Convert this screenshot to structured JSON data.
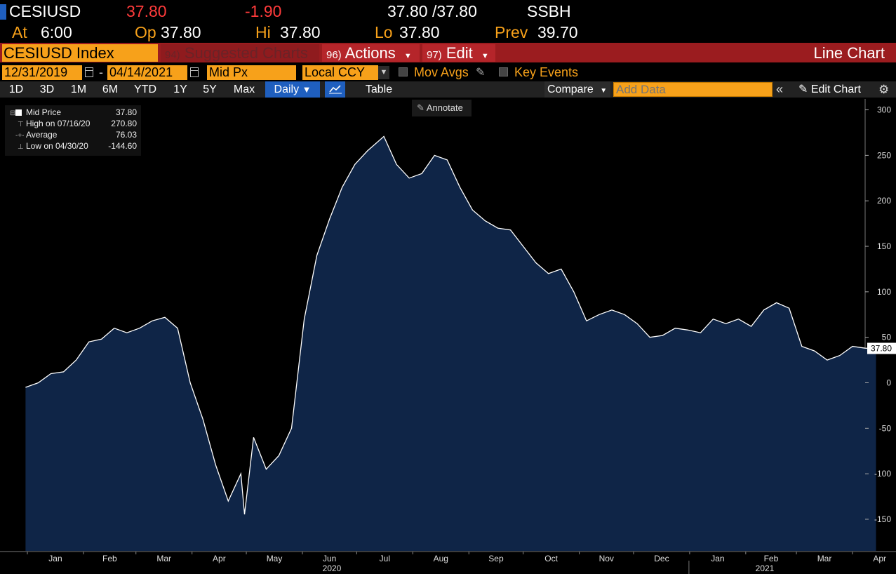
{
  "header": {
    "ticker": "CESIUSD",
    "last_price": "37.80",
    "net_change": "-1.90",
    "bid_ask": "37.80 /37.80",
    "source": "SSBH",
    "at_label": "At",
    "at_time": "6:00",
    "open_label": "Op",
    "open": "37.80",
    "high_label": "Hi",
    "high": "37.80",
    "low_label": "Lo",
    "low": "37.80",
    "prev_label": "Prev",
    "prev": "39.70"
  },
  "toolbar": {
    "security": "CESIUSD Index",
    "suggested_num": "94)",
    "suggested": "Suggested Charts",
    "actions_num": "96)",
    "actions": "Actions",
    "edit_num": "97)",
    "edit": "Edit",
    "chart_type": "Line Chart"
  },
  "settings": {
    "start_date": "12/31/2019",
    "date_sep": "-",
    "end_date": "04/14/2021",
    "field": "Mid Px",
    "currency": "Local CCY",
    "mov_avgs": "Mov Avgs",
    "key_events": "Key Events"
  },
  "ranges": {
    "buttons": [
      "1D",
      "3D",
      "1M",
      "6M",
      "YTD",
      "1Y",
      "5Y",
      "Max"
    ],
    "frequency": "Daily",
    "table": "Table",
    "compare": "Compare",
    "add_data_placeholder": "Add Data",
    "edit_chart": "Edit Chart",
    "annotate": "Annotate"
  },
  "legend": {
    "rows": [
      {
        "name": "Mid Price",
        "value": "37.80"
      },
      {
        "name": "High on 07/16/20",
        "value": "270.80"
      },
      {
        "name": "Average",
        "value": "76.03"
      },
      {
        "name": "Low on 04/30/20",
        "value": "-144.60"
      }
    ]
  },
  "colors": {
    "accent": "#f7a11a",
    "negative": "#ff3b3b",
    "toolbar_red": "#9b1c1f",
    "area_fill": "#0f2547",
    "line": "#ffffff",
    "active_blue": "#1f5fbf"
  },
  "chart_data": {
    "type": "area",
    "title": "",
    "xlabel": "",
    "ylabel": "",
    "ylim": [
      -185,
      308
    ],
    "y_ticks": [
      300,
      250,
      200,
      150,
      100,
      50,
      0,
      -50,
      -100,
      -150
    ],
    "x_tick_labels": [
      "Jan",
      "Feb",
      "Mar",
      "Apr",
      "May",
      "Jun",
      "Jul",
      "Aug",
      "Sep",
      "Oct",
      "Nov",
      "Dec",
      "Jan",
      "Feb",
      "Mar",
      "Apr"
    ],
    "year_labels": [
      "2020",
      "2021"
    ],
    "last_value_label": "37.80",
    "grid": false,
    "legend_position": "top-left",
    "series": [
      {
        "name": "Mid Price",
        "x": [
          "2019-12-31",
          "2020-01-07",
          "2020-01-14",
          "2020-01-21",
          "2020-01-28",
          "2020-02-04",
          "2020-02-11",
          "2020-02-18",
          "2020-02-25",
          "2020-03-03",
          "2020-03-10",
          "2020-03-17",
          "2020-03-24",
          "2020-03-31",
          "2020-04-07",
          "2020-04-14",
          "2020-04-21",
          "2020-04-28",
          "2020-04-30",
          "2020-05-05",
          "2020-05-12",
          "2020-05-19",
          "2020-05-26",
          "2020-06-02",
          "2020-06-09",
          "2020-06-16",
          "2020-06-23",
          "2020-06-30",
          "2020-07-07",
          "2020-07-16",
          "2020-07-23",
          "2020-07-30",
          "2020-08-06",
          "2020-08-13",
          "2020-08-20",
          "2020-08-27",
          "2020-09-03",
          "2020-09-10",
          "2020-09-17",
          "2020-09-24",
          "2020-10-01",
          "2020-10-08",
          "2020-10-15",
          "2020-10-22",
          "2020-10-29",
          "2020-11-05",
          "2020-11-12",
          "2020-11-19",
          "2020-11-26",
          "2020-12-03",
          "2020-12-10",
          "2020-12-17",
          "2020-12-24",
          "2020-12-31",
          "2021-01-07",
          "2021-01-14",
          "2021-01-21",
          "2021-01-28",
          "2021-02-04",
          "2021-02-11",
          "2021-02-18",
          "2021-02-25",
          "2021-03-04",
          "2021-03-11",
          "2021-03-18",
          "2021-03-25",
          "2021-04-01",
          "2021-04-08",
          "2021-04-14"
        ],
        "values": [
          -5,
          0,
          10,
          12,
          25,
          45,
          48,
          60,
          55,
          60,
          68,
          72,
          60,
          0,
          -40,
          -90,
          -130,
          -100,
          -144.6,
          -60,
          -95,
          -80,
          -50,
          70,
          140,
          180,
          215,
          240,
          255,
          270.8,
          240,
          225,
          230,
          250,
          245,
          215,
          190,
          178,
          170,
          168,
          150,
          132,
          120,
          125,
          100,
          68,
          75,
          80,
          75,
          65,
          50,
          52,
          60,
          58,
          55,
          70,
          65,
          70,
          62,
          80,
          88,
          82,
          40,
          35,
          25,
          30,
          40,
          38,
          37.8
        ]
      }
    ]
  }
}
